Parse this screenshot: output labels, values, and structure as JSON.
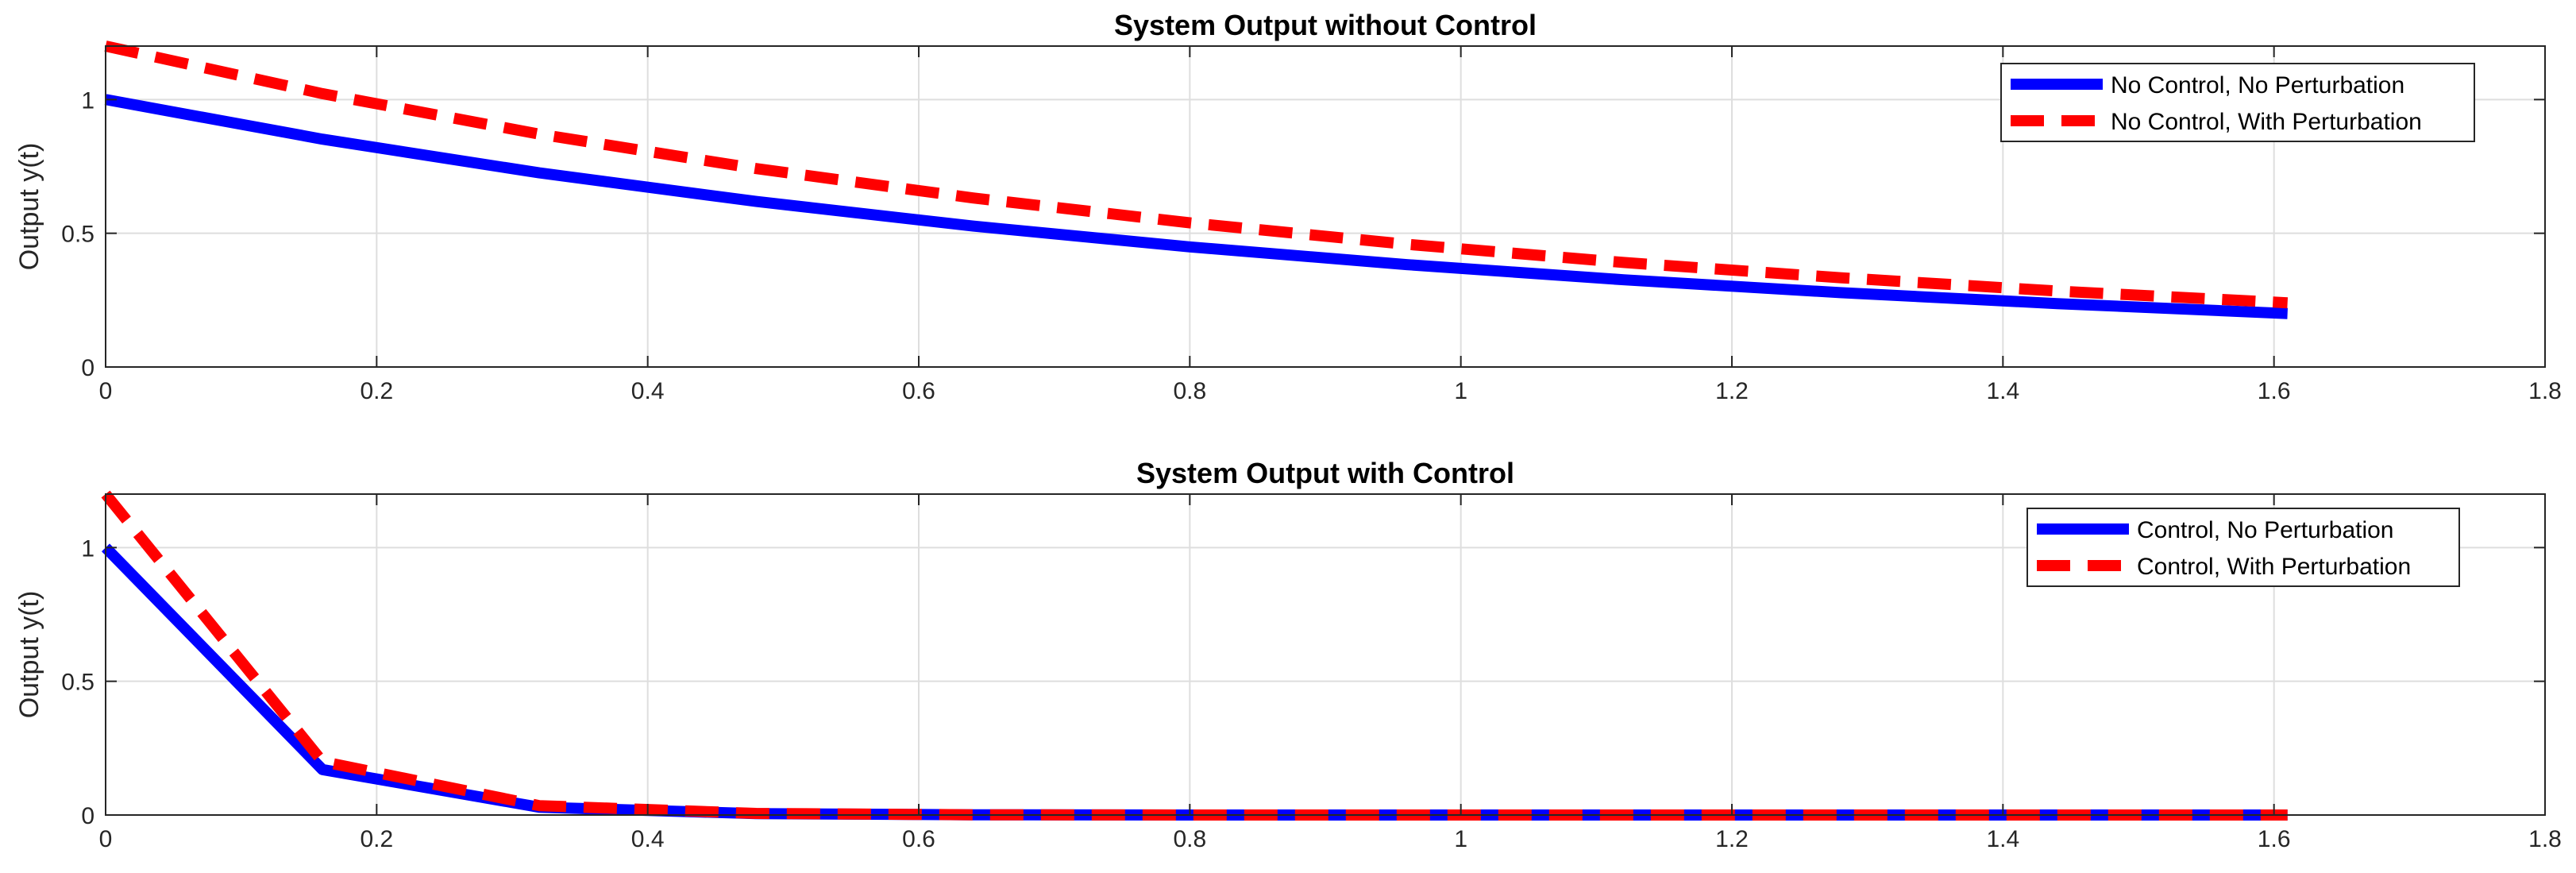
{
  "chart_data": [
    {
      "type": "line",
      "title": "System Output without Control",
      "xlabel": "",
      "ylabel": "Output y(t)",
      "xlim": [
        0,
        1.8
      ],
      "ylim": [
        0,
        1.2
      ],
      "xticks": [
        0,
        0.2,
        0.4,
        0.6,
        0.8,
        1,
        1.2,
        1.4,
        1.6,
        1.8
      ],
      "xtick_labels": [
        "0",
        "0.2",
        "0.4",
        "0.6",
        "0.8",
        "1",
        "1.2",
        "1.4",
        "1.6",
        "1.8"
      ],
      "yticks": [
        0,
        0.5,
        1
      ],
      "ytick_labels": [
        "0",
        "0.5",
        "1"
      ],
      "grid": true,
      "legend_position": "top-right",
      "series": [
        {
          "name": "No Control, No Perturbation",
          "color": "#0000ff",
          "style": "solid",
          "x": [
            0,
            0.16,
            0.32,
            0.48,
            0.64,
            0.8,
            0.96,
            1.12,
            1.28,
            1.44,
            1.61
          ],
          "y": [
            1.0,
            0.852,
            0.726,
            0.619,
            0.527,
            0.449,
            0.383,
            0.326,
            0.278,
            0.237,
            0.2
          ]
        },
        {
          "name": "No Control, With Perturbation",
          "color": "#ff0000",
          "style": "dashed",
          "x": [
            0,
            0.16,
            0.32,
            0.48,
            0.64,
            0.8,
            0.96,
            1.12,
            1.28,
            1.44,
            1.61
          ],
          "y": [
            1.2,
            1.022,
            0.871,
            0.742,
            0.632,
            0.539,
            0.459,
            0.391,
            0.334,
            0.284,
            0.24
          ]
        }
      ]
    },
    {
      "type": "line",
      "title": "System Output with Control",
      "xlabel": "",
      "ylabel": "Output y(t)",
      "xlim": [
        0,
        1.8
      ],
      "ylim": [
        0,
        1.2
      ],
      "xticks": [
        0,
        0.2,
        0.4,
        0.6,
        0.8,
        1,
        1.2,
        1.4,
        1.6,
        1.8
      ],
      "xtick_labels": [
        "0",
        "0.2",
        "0.4",
        "0.6",
        "0.8",
        "1",
        "1.2",
        "1.4",
        "1.6",
        "1.8"
      ],
      "yticks": [
        0,
        0.5,
        1
      ],
      "ytick_labels": [
        "0",
        "0.5",
        "1"
      ],
      "grid": true,
      "legend_position": "top-right",
      "series": [
        {
          "name": "Control, No Perturbation",
          "color": "#0000ff",
          "style": "solid",
          "x": [
            0,
            0.16,
            0.32,
            0.48,
            0.64,
            0.8,
            0.96,
            1.12,
            1.28,
            1.44,
            1.61
          ],
          "y": [
            1.0,
            0.17,
            0.029,
            0.005,
            0.001,
            0,
            0,
            0,
            0,
            0,
            0
          ]
        },
        {
          "name": "Control, With Perturbation",
          "color": "#ff0000",
          "style": "dashed",
          "x": [
            0,
            0.16,
            0.32,
            0.48,
            0.64,
            0.8,
            0.96,
            1.12,
            1.28,
            1.44,
            1.61
          ],
          "y": [
            1.2,
            0.2,
            0.035,
            0.006,
            0.001,
            0,
            0,
            0,
            0,
            0,
            0
          ]
        }
      ]
    }
  ]
}
